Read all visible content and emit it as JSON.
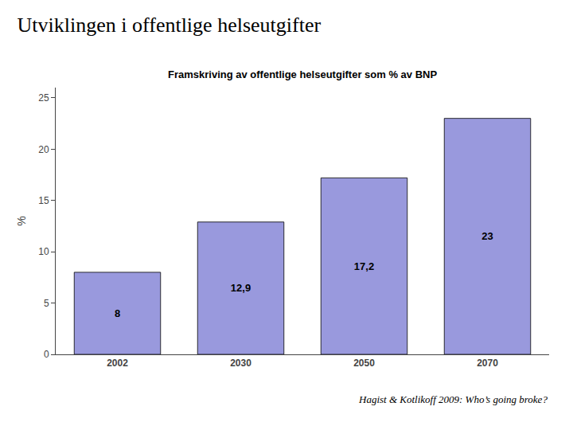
{
  "chart_data": {
    "type": "bar",
    "title": "Utviklingen i offentlige helseutgifter",
    "subtitle": "Framskriving av offentlige helseutgifter som % av BNP",
    "categories": [
      "2002",
      "2030",
      "2050",
      "2070"
    ],
    "values": [
      8,
      12.9,
      17.2,
      23
    ],
    "value_labels": [
      "8",
      "12,9",
      "17,2",
      "23"
    ],
    "data_labels": true,
    "color": "#9999dd",
    "ylabel": "%",
    "ylim": [
      0,
      26
    ],
    "yticks": [
      0,
      5,
      10,
      15,
      20,
      25
    ],
    "grid": false,
    "annotations": [
      "Hagist & Kotlikoff 2009: Who’s going broke?"
    ]
  }
}
